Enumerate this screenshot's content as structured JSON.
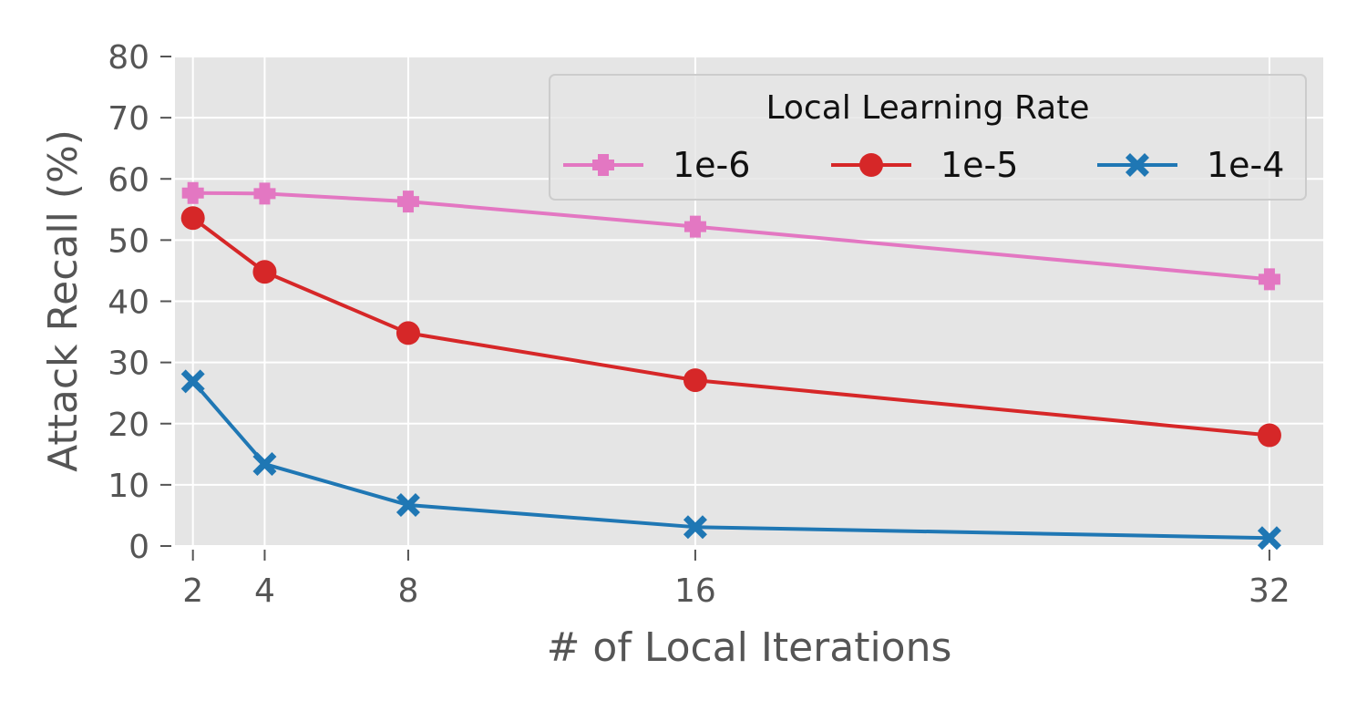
{
  "chart_data": {
    "type": "line",
    "xlabel": "# of Local Iterations",
    "ylabel": "Attack Recall (%)",
    "x": [
      2,
      4,
      8,
      16,
      32
    ],
    "x_ticks": [
      "2",
      "4",
      "8",
      "16",
      "32"
    ],
    "y_ticks": [
      "0",
      "10",
      "20",
      "30",
      "40",
      "50",
      "60",
      "70",
      "80"
    ],
    "xlim": [
      1.5,
      33.5
    ],
    "ylim": [
      0,
      80
    ],
    "grid": true,
    "legend": {
      "title": "Local Learning Rate",
      "placement": "top-right",
      "ncol": 3
    },
    "series": [
      {
        "name": "1e-6",
        "color": "#e377c2",
        "marker": "plus",
        "values": [
          57.7,
          57.6,
          56.3,
          52.2,
          43.6
        ]
      },
      {
        "name": "1e-5",
        "color": "#d62728",
        "marker": "circle",
        "values": [
          53.6,
          44.8,
          34.8,
          27.1,
          18.1
        ]
      },
      {
        "name": "1e-4",
        "color": "#1f77b4",
        "marker": "x",
        "values": [
          26.9,
          13.4,
          6.7,
          3.1,
          1.3
        ]
      }
    ]
  }
}
